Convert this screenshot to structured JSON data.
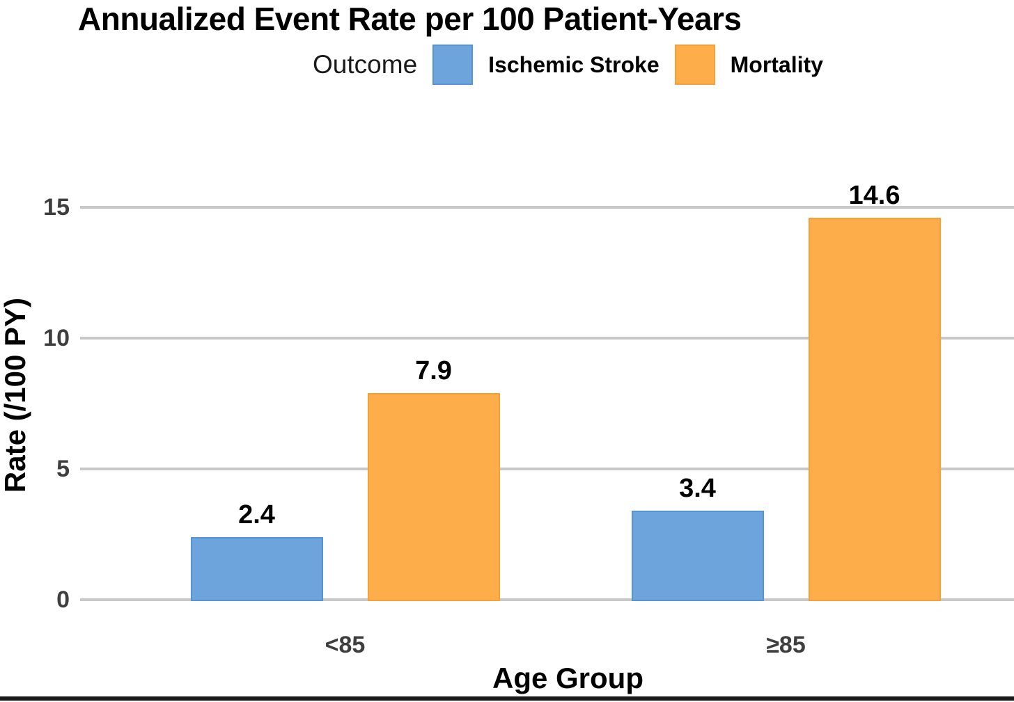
{
  "chart_data": {
    "type": "bar",
    "title": "Annualized Event Rate per 100 Patient-Years",
    "legend_title": "Outcome",
    "legend_position": "top",
    "categories": [
      "<85",
      "≥85"
    ],
    "series": [
      {
        "name": "Ischemic Stroke",
        "color": "#6CA4DB",
        "border_color": "#5693D2",
        "values": [
          2.4,
          3.4
        ]
      },
      {
        "name": "Mortality",
        "color": "#FDAD49",
        "border_color": "#F5A138",
        "values": [
          7.9,
          14.6
        ]
      }
    ],
    "xlabel": "Age Group",
    "ylabel": "Rate (/100 PY)",
    "yticks": [
      0,
      5,
      10,
      15
    ],
    "ylim": [
      0,
      16.5
    ],
    "grid": "horizontal"
  },
  "colors": {
    "gridline": "#C8C8C8",
    "tick_text": "#3E3E3E",
    "axis_text": "#000000",
    "frame_line": "#1A1A1A",
    "background": "#FFFFFF"
  }
}
